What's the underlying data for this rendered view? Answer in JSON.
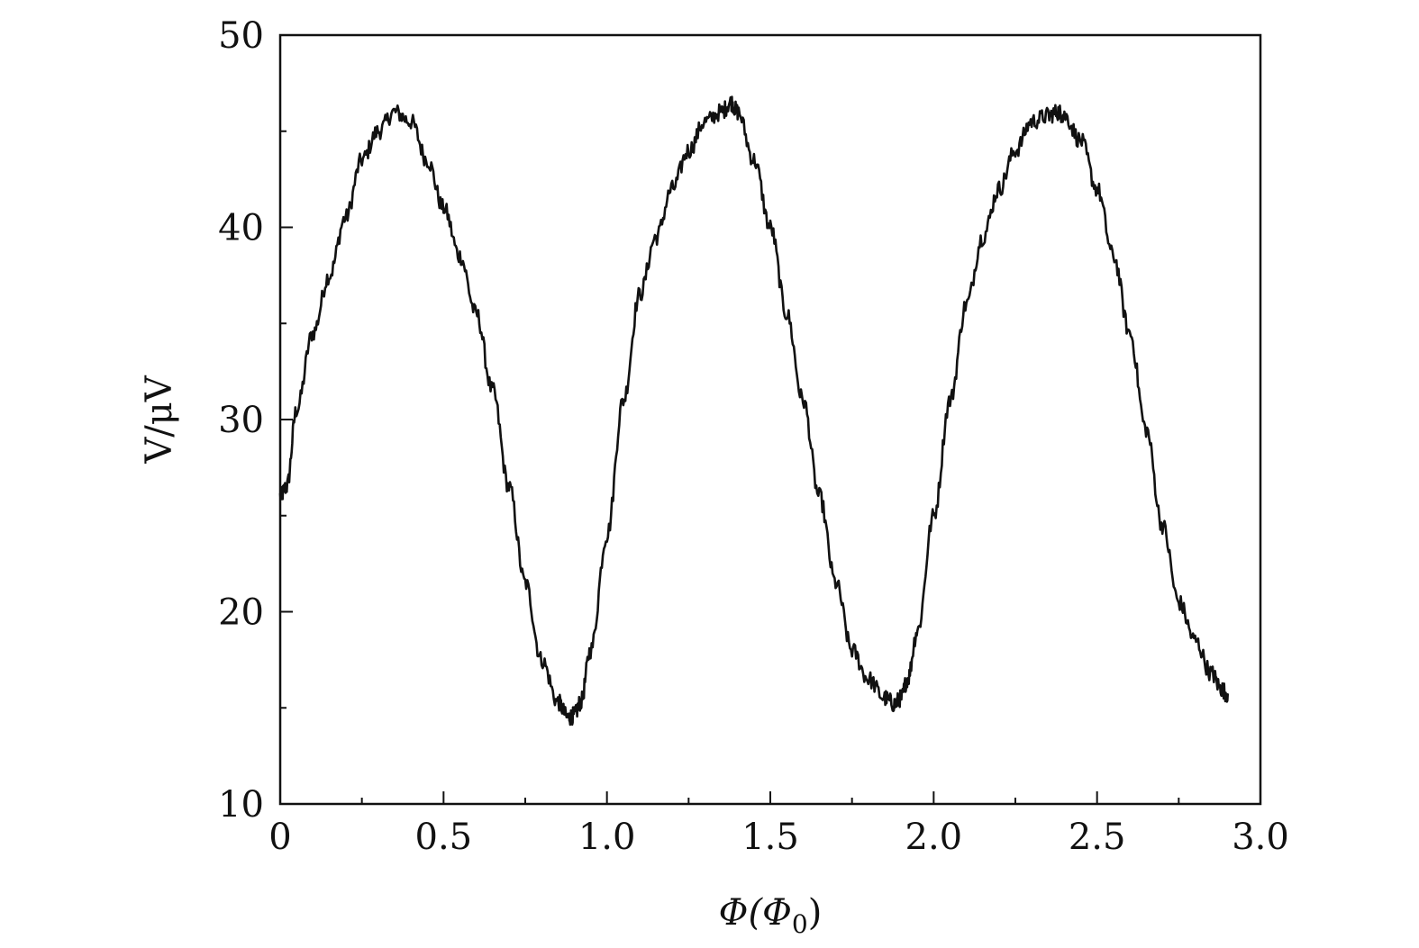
{
  "chart_data": {
    "type": "line",
    "xlabel": "Φ(Φ0)",
    "xlabel_parts": {
      "main": "Φ(Φ",
      "sub": "0",
      "close": ")"
    },
    "ylabel": "V/μV",
    "xlim": [
      0,
      3.0
    ],
    "ylim": [
      10,
      50
    ],
    "x_ticks": [
      0,
      0.5,
      1.0,
      1.5,
      2.0,
      2.5,
      3.0
    ],
    "x_tick_labels": [
      "0",
      "0.5",
      "1.0",
      "1.5",
      "2.0",
      "2.5",
      "3.0"
    ],
    "x_minor_ticks": [
      0.25,
      0.75,
      1.25,
      1.75,
      2.25,
      2.75
    ],
    "y_ticks": [
      10,
      20,
      30,
      40,
      50
    ],
    "y_tick_labels": [
      "10",
      "20",
      "30",
      "40",
      "50"
    ],
    "y_minor_ticks": [
      15,
      25,
      35,
      45
    ],
    "grid": false,
    "line_color": "#111111",
    "series": [
      {
        "x": [
          0,
          0.02,
          0.05,
          0.1,
          0.15,
          0.2,
          0.25,
          0.3,
          0.35,
          0.4,
          0.45,
          0.5,
          0.55,
          0.6,
          0.65,
          0.7,
          0.75,
          0.8,
          0.85,
          0.88,
          0.9,
          0.92,
          0.95,
          1.0,
          1.05,
          1.1,
          1.15,
          1.2,
          1.25,
          1.3,
          1.35,
          1.38,
          1.4,
          1.45,
          1.5,
          1.55,
          1.6,
          1.65,
          1.7,
          1.75,
          1.8,
          1.85,
          1.88,
          1.9,
          1.92,
          1.95,
          2.0,
          2.05,
          2.1,
          2.15,
          2.2,
          2.25,
          2.3,
          2.35,
          2.38,
          2.4,
          2.45,
          2.5,
          2.55,
          2.6,
          2.65,
          2.7,
          2.75,
          2.8,
          2.85,
          2.88,
          2.9
        ],
        "y": [
          26,
          26.5,
          30.5,
          34.5,
          37.5,
          40.5,
          43.5,
          45,
          46,
          45.5,
          43.5,
          41,
          38.5,
          35.5,
          31.5,
          26.5,
          21.5,
          17.5,
          15.3,
          14.5,
          14.6,
          15.3,
          18,
          24,
          31,
          36.5,
          39.5,
          42,
          44,
          45.5,
          46,
          46.5,
          46,
          43.5,
          40,
          35.5,
          31,
          26,
          21.5,
          18,
          16.5,
          15.5,
          15.2,
          15.5,
          16.5,
          19,
          25,
          31,
          36,
          39.5,
          42,
          44,
          45.5,
          45.8,
          46,
          45.8,
          44.5,
          42,
          38.5,
          34.5,
          29.5,
          24.5,
          20.5,
          18.5,
          16.8,
          16,
          15.7
        ]
      }
    ]
  }
}
